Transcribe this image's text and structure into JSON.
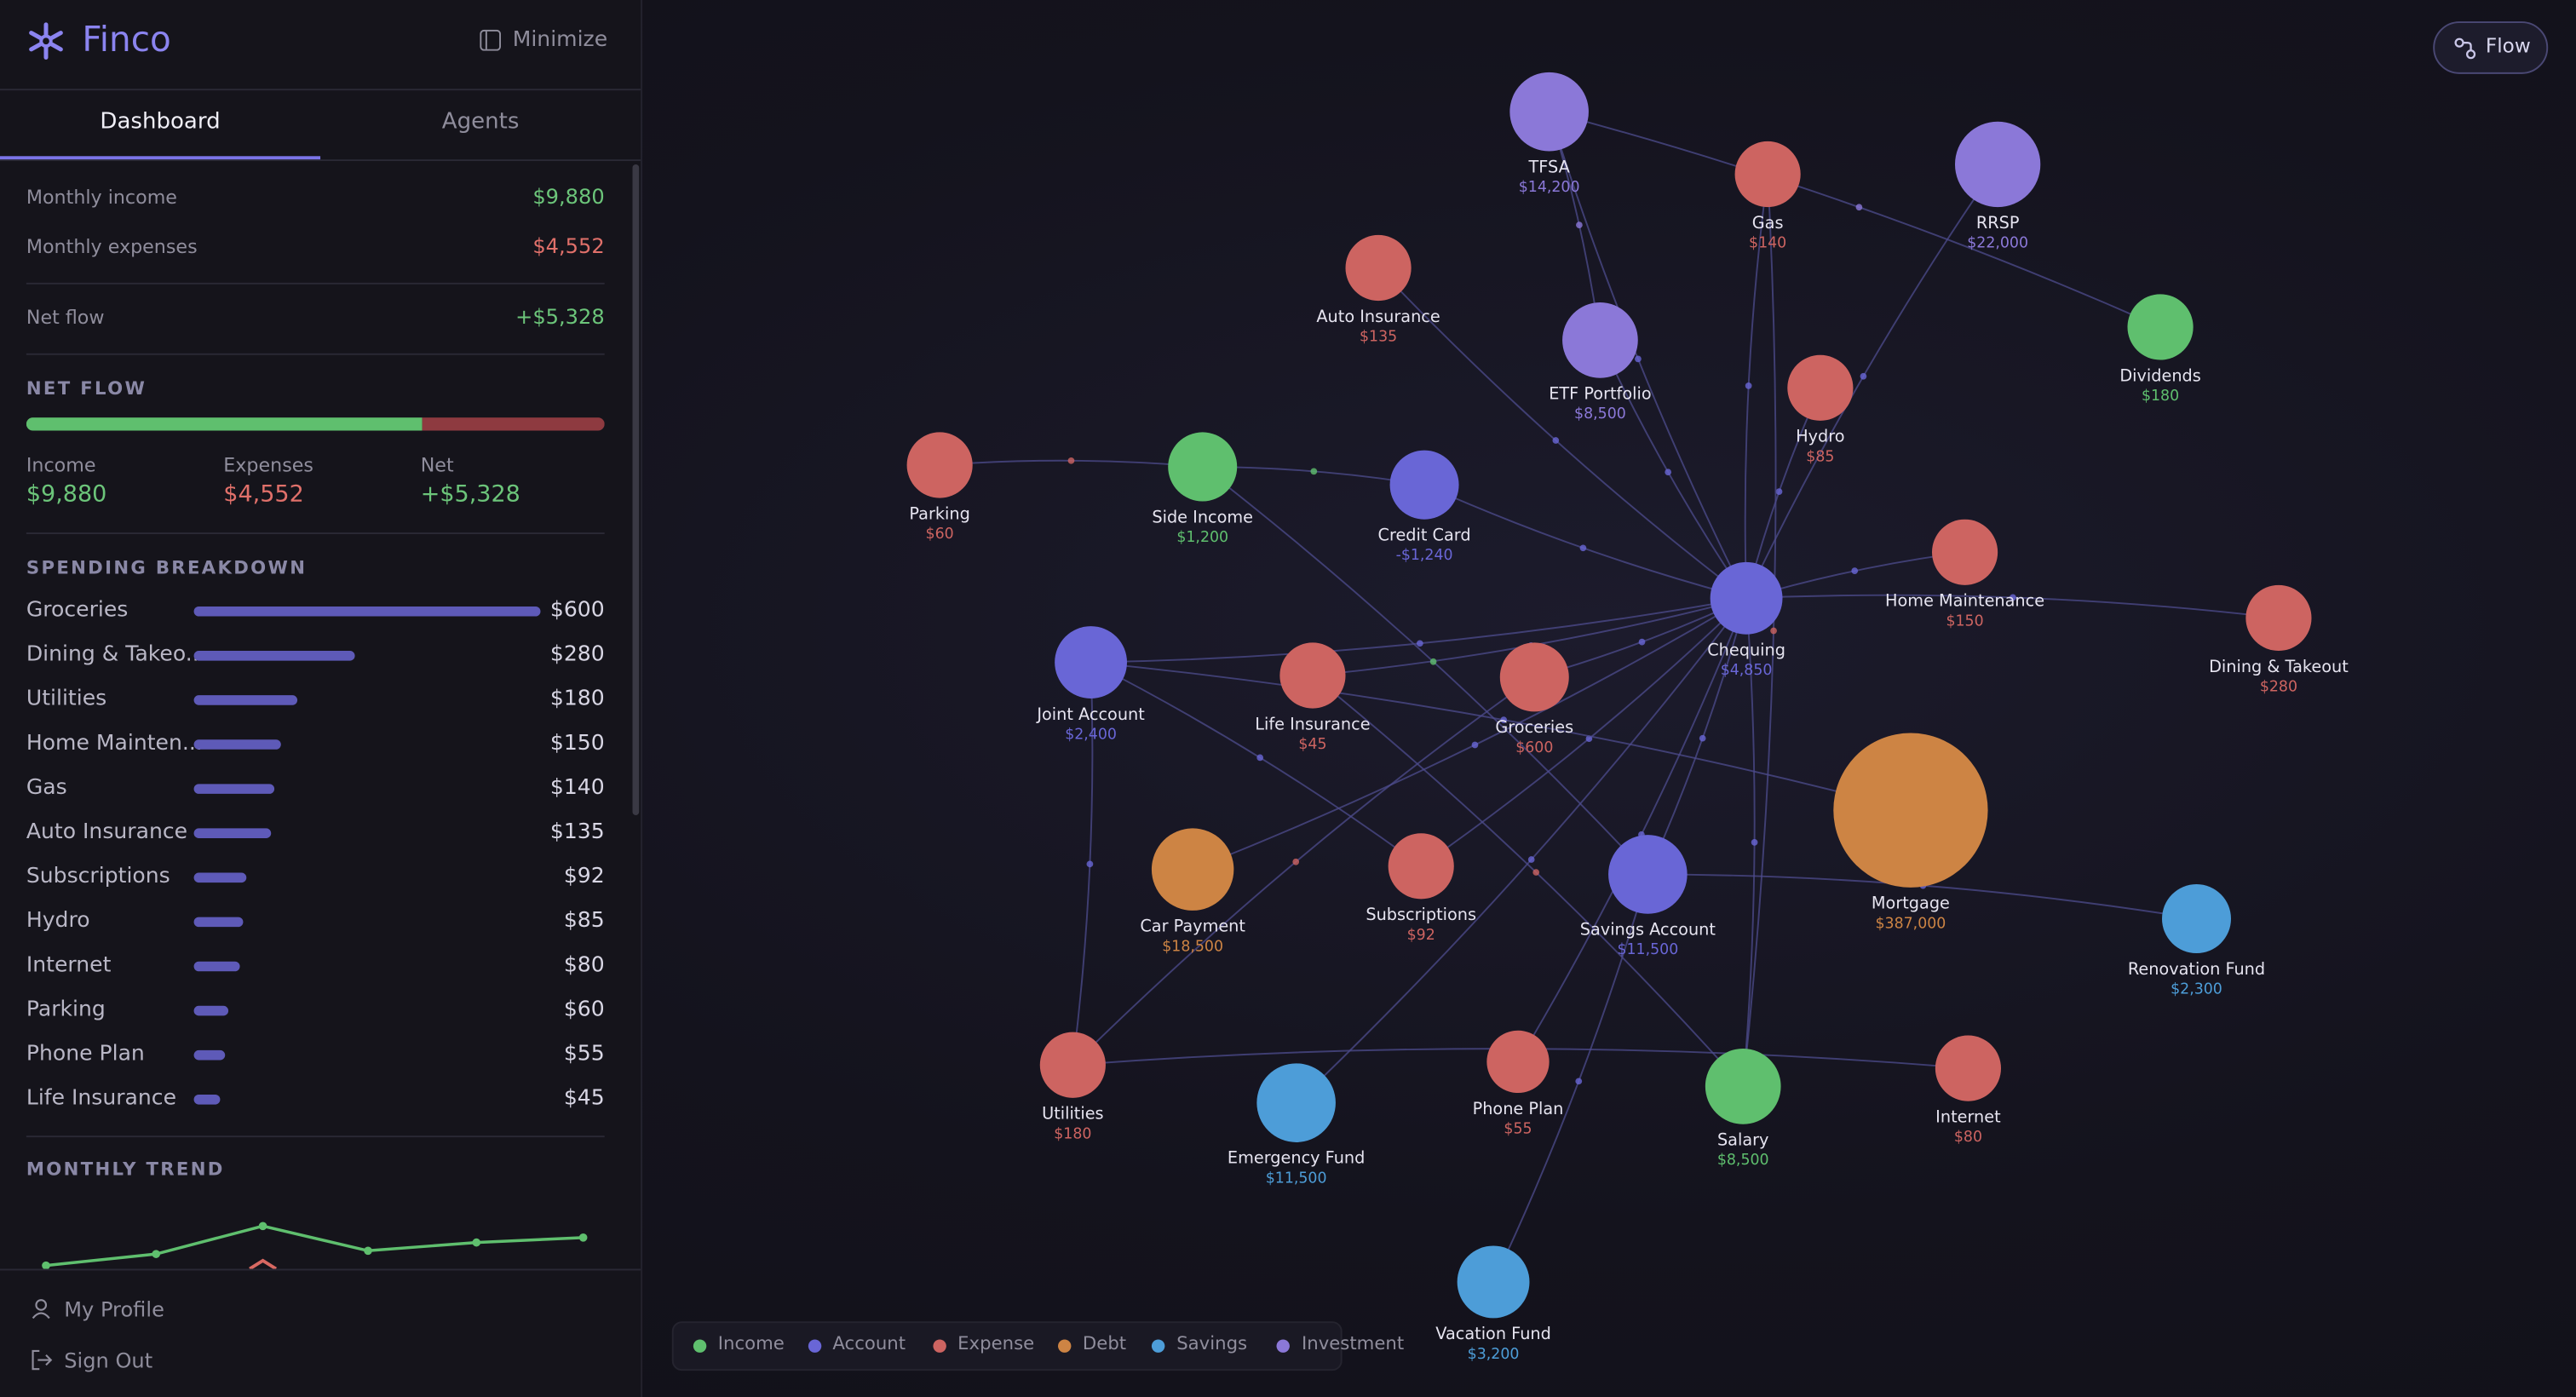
{
  "app": {
    "name": "Finco",
    "minimize": "Minimize",
    "tabs": [
      "Dashboard",
      "Agents"
    ]
  },
  "summary": [
    {
      "label": "Monthly income",
      "value": "$9,880"
    },
    {
      "label": "Monthly expenses",
      "value": "$4,552"
    },
    {
      "label": "Net flow",
      "value": "+$5,328"
    }
  ],
  "net_flow": {
    "title": "NET FLOW",
    "income": {
      "label": "Income",
      "value": 9880,
      "value_label": "$9,880",
      "color": "#5fbf6e"
    },
    "expenses": {
      "label": "Expenses",
      "value": 4552,
      "value_label": "$4,552",
      "color": "#8e3a40"
    },
    "net": {
      "label": "Net",
      "value_label": "+$5,328"
    }
  },
  "spending": {
    "title": "SPENDING BREAKDOWN",
    "color": "#5e5ab8",
    "categories": [
      "Groceries",
      "Dining & Takeo...",
      "Utilities",
      "Home Mainten...",
      "Gas",
      "Auto Insurance",
      "Subscriptions",
      "Hydro",
      "Internet",
      "Parking",
      "Phone Plan",
      "Life Insurance"
    ],
    "values": [
      600,
      280,
      180,
      150,
      140,
      135,
      92,
      85,
      80,
      60,
      55,
      45
    ],
    "value_labels": [
      "$600",
      "$280",
      "$180",
      "$150",
      "$140",
      "$135",
      "$92",
      "$85",
      "$80",
      "$60",
      "$55",
      "$45"
    ]
  },
  "trend": {
    "title": "MONTHLY TREND"
  },
  "footer": [
    "My Profile",
    "Sign Out"
  ],
  "flow_button": "Flow",
  "graph": {
    "legend": [
      {
        "kind": "income",
        "name": "Income",
        "color": "#5fbf6e"
      },
      {
        "kind": "account",
        "name": "Account",
        "color": "#6966d6"
      },
      {
        "kind": "expense",
        "name": "Expense",
        "color": "#cd6461"
      },
      {
        "kind": "debt",
        "name": "Debt",
        "color": "#cd8444"
      },
      {
        "kind": "savings",
        "name": "Savings",
        "color": "#4d9dd8"
      },
      {
        "kind": "investment",
        "name": "Investment",
        "color": "#8b78d8"
      }
    ],
    "nodes": [
      {
        "label": "TFSA",
        "amount": "$14,200",
        "kind": "investment"
      },
      {
        "label": "Gas",
        "amount": "$140",
        "kind": "expense"
      },
      {
        "label": "RRSP",
        "amount": "$22,000",
        "kind": "investment"
      },
      {
        "label": "Auto Insurance",
        "amount": "$135",
        "kind": "expense"
      },
      {
        "label": "ETF Portfolio",
        "amount": "$8,500",
        "kind": "investment"
      },
      {
        "label": "Dividends",
        "amount": "$180",
        "kind": "income"
      },
      {
        "label": "Hydro",
        "amount": "$85",
        "kind": "expense"
      },
      {
        "label": "Parking",
        "amount": "$60",
        "kind": "expense"
      },
      {
        "label": "Side Income",
        "amount": "$1,200",
        "kind": "income"
      },
      {
        "label": "Credit Card",
        "amount": "-$1,240",
        "kind": "account"
      },
      {
        "label": "Home Maintenance",
        "amount": "$150",
        "kind": "expense"
      },
      {
        "label": "Dining & Takeout",
        "amount": "$280",
        "kind": "expense"
      },
      {
        "label": "Chequing",
        "amount": "$4,850",
        "kind": "account"
      },
      {
        "label": "Joint Account",
        "amount": "$2,400",
        "kind": "account"
      },
      {
        "label": "Life Insurance",
        "amount": "$45",
        "kind": "expense"
      },
      {
        "label": "Groceries",
        "amount": "$600",
        "kind": "expense"
      },
      {
        "label": "Mortgage",
        "amount": "$387,000",
        "kind": "debt"
      },
      {
        "label": "Car Payment",
        "amount": "$18,500",
        "kind": "debt"
      },
      {
        "label": "Subscriptions",
        "amount": "$92",
        "kind": "expense"
      },
      {
        "label": "Savings Account",
        "amount": "$11,500",
        "kind": "account"
      },
      {
        "label": "Renovation Fund",
        "amount": "$2,300",
        "kind": "savings"
      },
      {
        "label": "Utilities",
        "amount": "$180",
        "kind": "expense"
      },
      {
        "label": "Emergency Fund",
        "amount": "$11,500",
        "kind": "savings"
      },
      {
        "label": "Phone Plan",
        "amount": "$55",
        "kind": "expense"
      },
      {
        "label": "Salary",
        "amount": "$8,500",
        "kind": "income"
      },
      {
        "label": "Internet",
        "amount": "$80",
        "kind": "expense"
      },
      {
        "label": "Vacation Fund",
        "amount": "$3,200",
        "kind": "savings"
      }
    ]
  }
}
